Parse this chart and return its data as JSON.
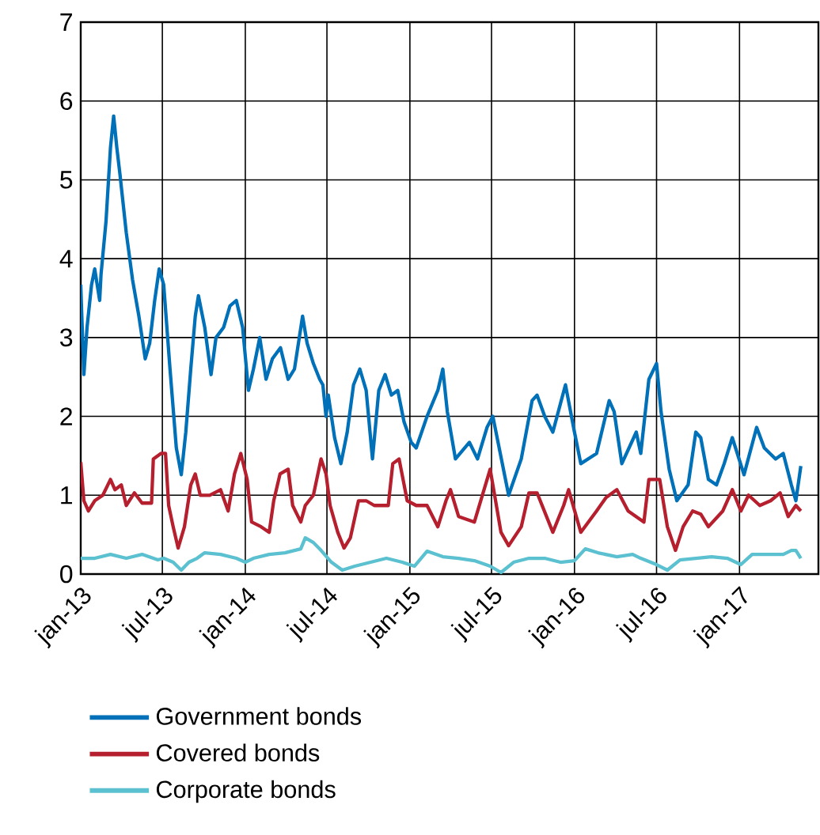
{
  "chart_data": {
    "type": "line",
    "xlim": [
      "2013-01-01",
      "2017-06-25"
    ],
    "ylim": [
      0,
      7
    ],
    "yticks": [
      0,
      1,
      2,
      3,
      4,
      5,
      6,
      7
    ],
    "xticks": [
      {
        "value": "2013-01-01",
        "label": "jan-13"
      },
      {
        "value": "2013-07-01",
        "label": "jul-13"
      },
      {
        "value": "2014-01-01",
        "label": "jan-14"
      },
      {
        "value": "2014-07-01",
        "label": "jul-14"
      },
      {
        "value": "2015-01-01",
        "label": "jan-15"
      },
      {
        "value": "2015-07-01",
        "label": "jul-15"
      },
      {
        "value": "2016-01-01",
        "label": "jan-16"
      },
      {
        "value": "2016-07-01",
        "label": "jul-16"
      },
      {
        "value": "2017-01-01",
        "label": "jan-17"
      }
    ],
    "grid": true,
    "legend": "bottom",
    "line_style": "solid",
    "series": [
      {
        "name": "Government bonds",
        "color": "#0070b8",
        "x": [
          "2013-01-01",
          "2013-01-03",
          "2013-01-08",
          "2013-01-15",
          "2013-01-25",
          "2013-02-01",
          "2013-02-12",
          "2013-02-15",
          "2013-02-26",
          "2013-03-08",
          "2013-03-15",
          "2013-03-22",
          "2013-03-29",
          "2013-04-12",
          "2013-04-26",
          "2013-05-10",
          "2013-05-24",
          "2013-06-03",
          "2013-06-14",
          "2013-06-24",
          "2013-07-04",
          "2013-07-18",
          "2013-08-01",
          "2013-08-12",
          "2013-08-22",
          "2013-09-02",
          "2013-09-12",
          "2013-09-19",
          "2013-10-03",
          "2013-10-17",
          "2013-10-28",
          "2013-11-14",
          "2013-11-28",
          "2013-12-12",
          "2013-12-26",
          "2014-01-08",
          "2014-01-19",
          "2014-02-02",
          "2014-02-16",
          "2014-03-02",
          "2014-03-20",
          "2014-04-06",
          "2014-04-20",
          "2014-05-08",
          "2014-05-18",
          "2014-06-01",
          "2014-06-15",
          "2014-06-22",
          "2014-06-29",
          "2014-07-04",
          "2014-07-18",
          "2014-08-01",
          "2014-08-15",
          "2014-08-29",
          "2014-09-12",
          "2014-09-26",
          "2014-10-10",
          "2014-10-24",
          "2014-11-07",
          "2014-11-21",
          "2014-12-05",
          "2014-12-19",
          "2015-01-04",
          "2015-01-15",
          "2015-02-08",
          "2015-03-04",
          "2015-03-15",
          "2015-03-25",
          "2015-04-12",
          "2015-05-13",
          "2015-05-31",
          "2015-06-21",
          "2015-07-04",
          "2015-08-08",
          "2015-09-05",
          "2015-09-29",
          "2015-10-10",
          "2015-10-27",
          "2015-11-14",
          "2015-12-12",
          "2016-01-01",
          "2016-01-15",
          "2016-02-19",
          "2016-03-18",
          "2016-03-29",
          "2016-04-15",
          "2016-05-17",
          "2016-05-27",
          "2016-06-14",
          "2016-07-01",
          "2016-07-11",
          "2016-07-29",
          "2016-08-15",
          "2016-09-09",
          "2016-09-26",
          "2016-10-07",
          "2016-10-24",
          "2016-11-11",
          "2016-11-28",
          "2016-12-16",
          "2017-01-11",
          "2017-02-08",
          "2017-02-25",
          "2017-03-22",
          "2017-04-08",
          "2017-04-26",
          "2017-05-06",
          "2017-05-17"
        ],
        "values": [
          3.67,
          3.33,
          2.53,
          3.13,
          3.67,
          3.87,
          3.47,
          3.8,
          4.47,
          5.41,
          5.81,
          5.41,
          5.07,
          4.33,
          3.73,
          3.27,
          2.73,
          2.93,
          3.47,
          3.87,
          3.67,
          2.6,
          1.6,
          1.26,
          1.8,
          2.6,
          3.27,
          3.53,
          3.13,
          2.53,
          3.0,
          3.13,
          3.4,
          3.47,
          3.13,
          2.33,
          2.6,
          3.0,
          2.47,
          2.73,
          2.87,
          2.47,
          2.6,
          3.27,
          2.93,
          2.67,
          2.47,
          2.4,
          2.0,
          2.27,
          1.73,
          1.4,
          1.8,
          2.4,
          2.6,
          2.33,
          1.46,
          2.33,
          2.53,
          2.27,
          2.33,
          1.93,
          1.67,
          1.6,
          2.0,
          2.33,
          2.6,
          2.06,
          1.46,
          1.67,
          1.46,
          1.86,
          2.0,
          1.0,
          1.46,
          2.2,
          2.27,
          2.0,
          1.8,
          2.4,
          1.8,
          1.4,
          1.53,
          2.2,
          2.06,
          1.4,
          1.8,
          1.53,
          2.47,
          2.67,
          2.06,
          1.33,
          0.93,
          1.13,
          1.8,
          1.73,
          1.2,
          1.13,
          1.4,
          1.73,
          1.26,
          1.86,
          1.6,
          1.46,
          1.53,
          1.13,
          0.93,
          1.37
        ]
      },
      {
        "name": "Covered bonds",
        "color": "#b51f2e",
        "x": [
          "2013-01-01",
          "2013-01-08",
          "2013-01-18",
          "2013-02-01",
          "2013-02-19",
          "2013-03-08",
          "2013-03-18",
          "2013-04-01",
          "2013-04-12",
          "2013-04-30",
          "2013-05-17",
          "2013-06-07",
          "2013-06-11",
          "2013-06-28",
          "2013-07-08",
          "2013-07-15",
          "2013-07-25",
          "2013-08-05",
          "2013-08-19",
          "2013-09-02",
          "2013-09-12",
          "2013-09-23",
          "2013-10-14",
          "2013-11-07",
          "2013-11-24",
          "2013-12-08",
          "2013-12-22",
          "2014-01-05",
          "2014-01-15",
          "2014-02-05",
          "2014-02-23",
          "2014-03-05",
          "2014-03-19",
          "2014-04-06",
          "2014-04-16",
          "2014-05-04",
          "2014-05-14",
          "2014-06-01",
          "2014-06-18",
          "2014-06-29",
          "2014-07-08",
          "2014-07-25",
          "2014-08-08",
          "2014-08-22",
          "2014-09-09",
          "2014-09-26",
          "2014-10-14",
          "2014-10-31",
          "2014-11-14",
          "2014-11-24",
          "2014-12-08",
          "2014-12-26",
          "2015-01-15",
          "2015-02-08",
          "2015-03-04",
          "2015-03-22",
          "2015-04-01",
          "2015-04-19",
          "2015-05-24",
          "2015-06-28",
          "2015-07-22",
          "2015-08-08",
          "2015-09-05",
          "2015-09-22",
          "2015-10-10",
          "2015-11-14",
          "2015-12-08",
          "2015-12-19",
          "2016-01-15",
          "2016-02-19",
          "2016-03-11",
          "2016-04-04",
          "2016-04-29",
          "2016-06-03",
          "2016-06-14",
          "2016-07-08",
          "2016-07-25",
          "2016-08-12",
          "2016-08-29",
          "2016-09-19",
          "2016-10-07",
          "2016-10-24",
          "2016-11-25",
          "2016-12-16",
          "2017-01-04",
          "2017-01-21",
          "2017-02-15",
          "2017-03-11",
          "2017-04-01",
          "2017-04-19",
          "2017-05-06",
          "2017-05-17"
        ],
        "values": [
          1.42,
          0.93,
          0.8,
          0.93,
          1.0,
          1.2,
          1.07,
          1.13,
          0.87,
          1.03,
          0.9,
          0.9,
          1.46,
          1.53,
          1.53,
          0.87,
          0.6,
          0.33,
          0.6,
          1.13,
          1.27,
          1.0,
          1.0,
          1.07,
          0.8,
          1.27,
          1.53,
          1.2,
          0.66,
          0.6,
          0.53,
          0.93,
          1.27,
          1.33,
          0.87,
          0.66,
          0.87,
          1.0,
          1.46,
          1.27,
          0.87,
          0.53,
          0.33,
          0.46,
          0.93,
          0.93,
          0.87,
          0.87,
          0.87,
          1.4,
          1.46,
          0.93,
          0.87,
          0.87,
          0.6,
          0.93,
          1.07,
          0.73,
          0.66,
          1.33,
          0.53,
          0.36,
          0.6,
          1.03,
          1.03,
          0.53,
          0.87,
          1.07,
          0.53,
          0.8,
          0.97,
          1.07,
          0.8,
          0.66,
          1.2,
          1.2,
          0.6,
          0.3,
          0.6,
          0.8,
          0.76,
          0.6,
          0.8,
          1.07,
          0.8,
          1.0,
          0.87,
          0.93,
          1.03,
          0.73,
          0.87,
          0.8
        ]
      },
      {
        "name": "Corporate bonds",
        "color": "#5bc0cf",
        "x": [
          "2013-01-01",
          "2013-02-01",
          "2013-03-08",
          "2013-04-12",
          "2013-05-17",
          "2013-06-21",
          "2013-07-04",
          "2013-07-25",
          "2013-08-12",
          "2013-08-29",
          "2013-09-16",
          "2013-10-03",
          "2013-11-07",
          "2013-12-12",
          "2014-01-01",
          "2014-01-19",
          "2014-02-23",
          "2014-03-30",
          "2014-05-04",
          "2014-05-14",
          "2014-06-01",
          "2014-06-18",
          "2014-07-11",
          "2014-08-04",
          "2014-09-01",
          "2014-10-06",
          "2014-11-10",
          "2014-12-15",
          "2015-01-11",
          "2015-02-08",
          "2015-03-15",
          "2015-04-19",
          "2015-05-24",
          "2015-06-28",
          "2015-07-22",
          "2015-08-19",
          "2015-09-22",
          "2015-10-27",
          "2015-12-01",
          "2016-01-01",
          "2016-01-25",
          "2016-02-22",
          "2016-04-04",
          "2016-05-09",
          "2016-05-27",
          "2016-07-01",
          "2016-07-25",
          "2016-08-22",
          "2016-09-26",
          "2016-10-31",
          "2016-12-05",
          "2017-01-04",
          "2017-01-29",
          "2017-03-04",
          "2017-04-08",
          "2017-04-26",
          "2017-05-06",
          "2017-05-17"
        ],
        "values": [
          0.2,
          0.2,
          0.25,
          0.2,
          0.25,
          0.18,
          0.2,
          0.15,
          0.05,
          0.15,
          0.2,
          0.27,
          0.25,
          0.2,
          0.15,
          0.2,
          0.25,
          0.27,
          0.32,
          0.46,
          0.4,
          0.3,
          0.15,
          0.05,
          0.1,
          0.15,
          0.2,
          0.15,
          0.1,
          0.29,
          0.22,
          0.2,
          0.17,
          0.1,
          0.02,
          0.15,
          0.2,
          0.2,
          0.15,
          0.17,
          0.32,
          0.27,
          0.22,
          0.25,
          0.2,
          0.12,
          0.05,
          0.18,
          0.2,
          0.22,
          0.2,
          0.12,
          0.25,
          0.25,
          0.25,
          0.3,
          0.3,
          0.2
        ]
      }
    ]
  }
}
